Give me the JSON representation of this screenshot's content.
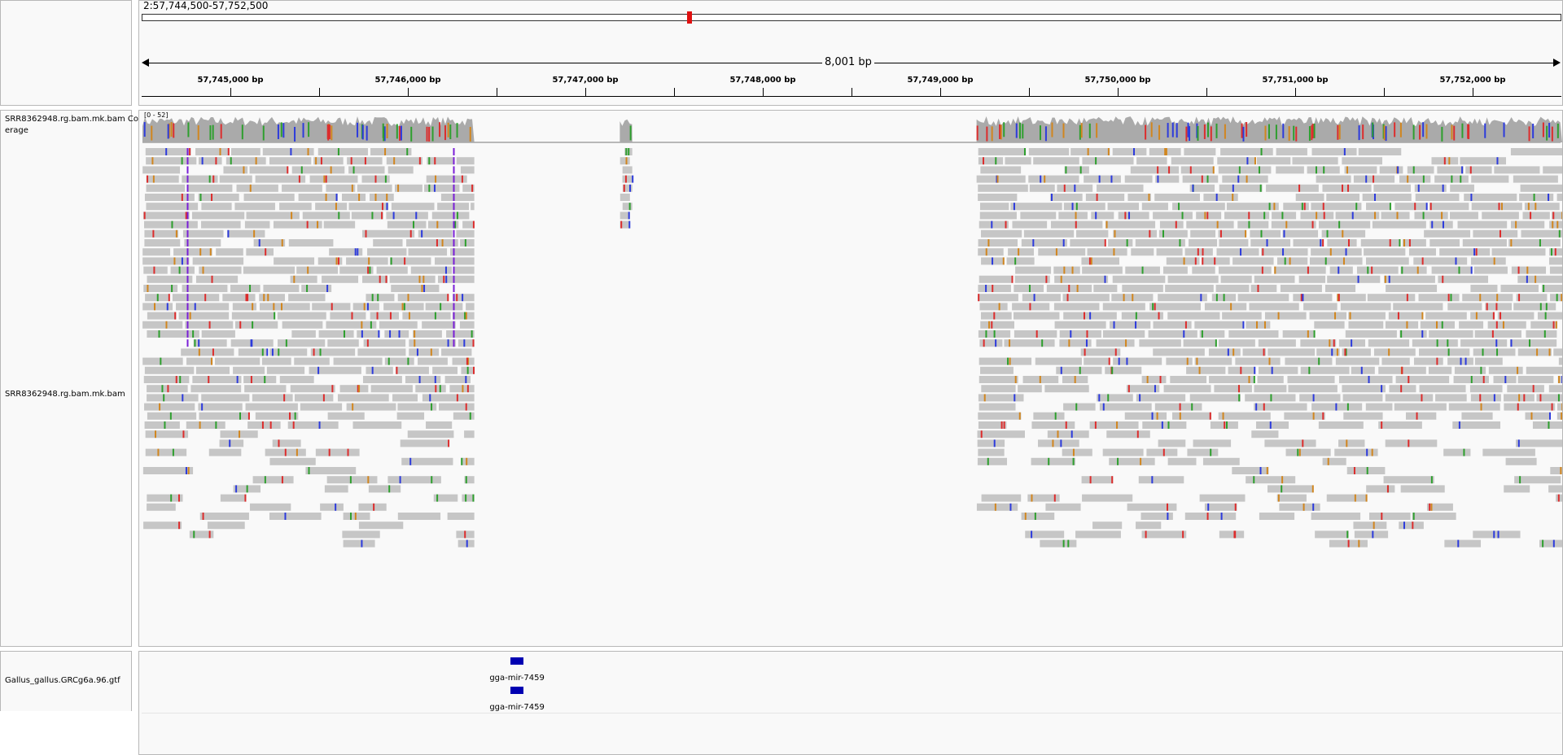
{
  "locus": "2:57,744,500-57,752,500",
  "span_label": "8,001 bp",
  "ruler": {
    "start": 57744500,
    "end": 57752500,
    "ticks": [
      {
        "pos": 57745000,
        "label": "57,745,000 bp"
      },
      {
        "pos": 57746000,
        "label": "57,746,000 bp"
      },
      {
        "pos": 57747000,
        "label": "57,747,000 bp"
      },
      {
        "pos": 57748000,
        "label": "57,748,000 bp"
      },
      {
        "pos": 57749000,
        "label": "57,749,000 bp"
      },
      {
        "pos": 57750000,
        "label": "57,750,000 bp"
      },
      {
        "pos": 57751000,
        "label": "57,751,000 bp"
      },
      {
        "pos": 57752000,
        "label": "57,752,000 bp"
      }
    ],
    "minor_ticks": [
      57745500,
      57746500,
      57747500,
      57748500,
      57749500,
      57750500,
      57751500
    ]
  },
  "tracks": {
    "coverage_name": "SRR8362948.rg.bam.mk.bam Coverage",
    "coverage_range": "[0 - 52]",
    "alignment_name": "SRR8362948.rg.bam.mk.bam",
    "feature_name": "Gallus_gallus.GRCg6a.96.gtf"
  },
  "coverage_regions": [
    {
      "start": 57744500,
      "end": 57746370
    },
    {
      "start": 57747190,
      "end": 57747260
    },
    {
      "start": 57749200,
      "end": 57752500
    }
  ],
  "features": [
    {
      "name": "gga-mir-7459",
      "start": 57746580,
      "end": 57746650,
      "row": 0
    },
    {
      "name": "gga-mir-7459",
      "start": 57746580,
      "end": 57746650,
      "row": 1
    }
  ],
  "colors": {
    "read": "#c6c6c6",
    "coverage": "#aaaaaa",
    "mismatch_a": "#2e9f2e",
    "mismatch_c": "#2d3bdc",
    "mismatch_g": "#d1861f",
    "mismatch_t": "#dc2d2d",
    "insertion": "#7a1fd6",
    "feature": "#0000b2"
  }
}
